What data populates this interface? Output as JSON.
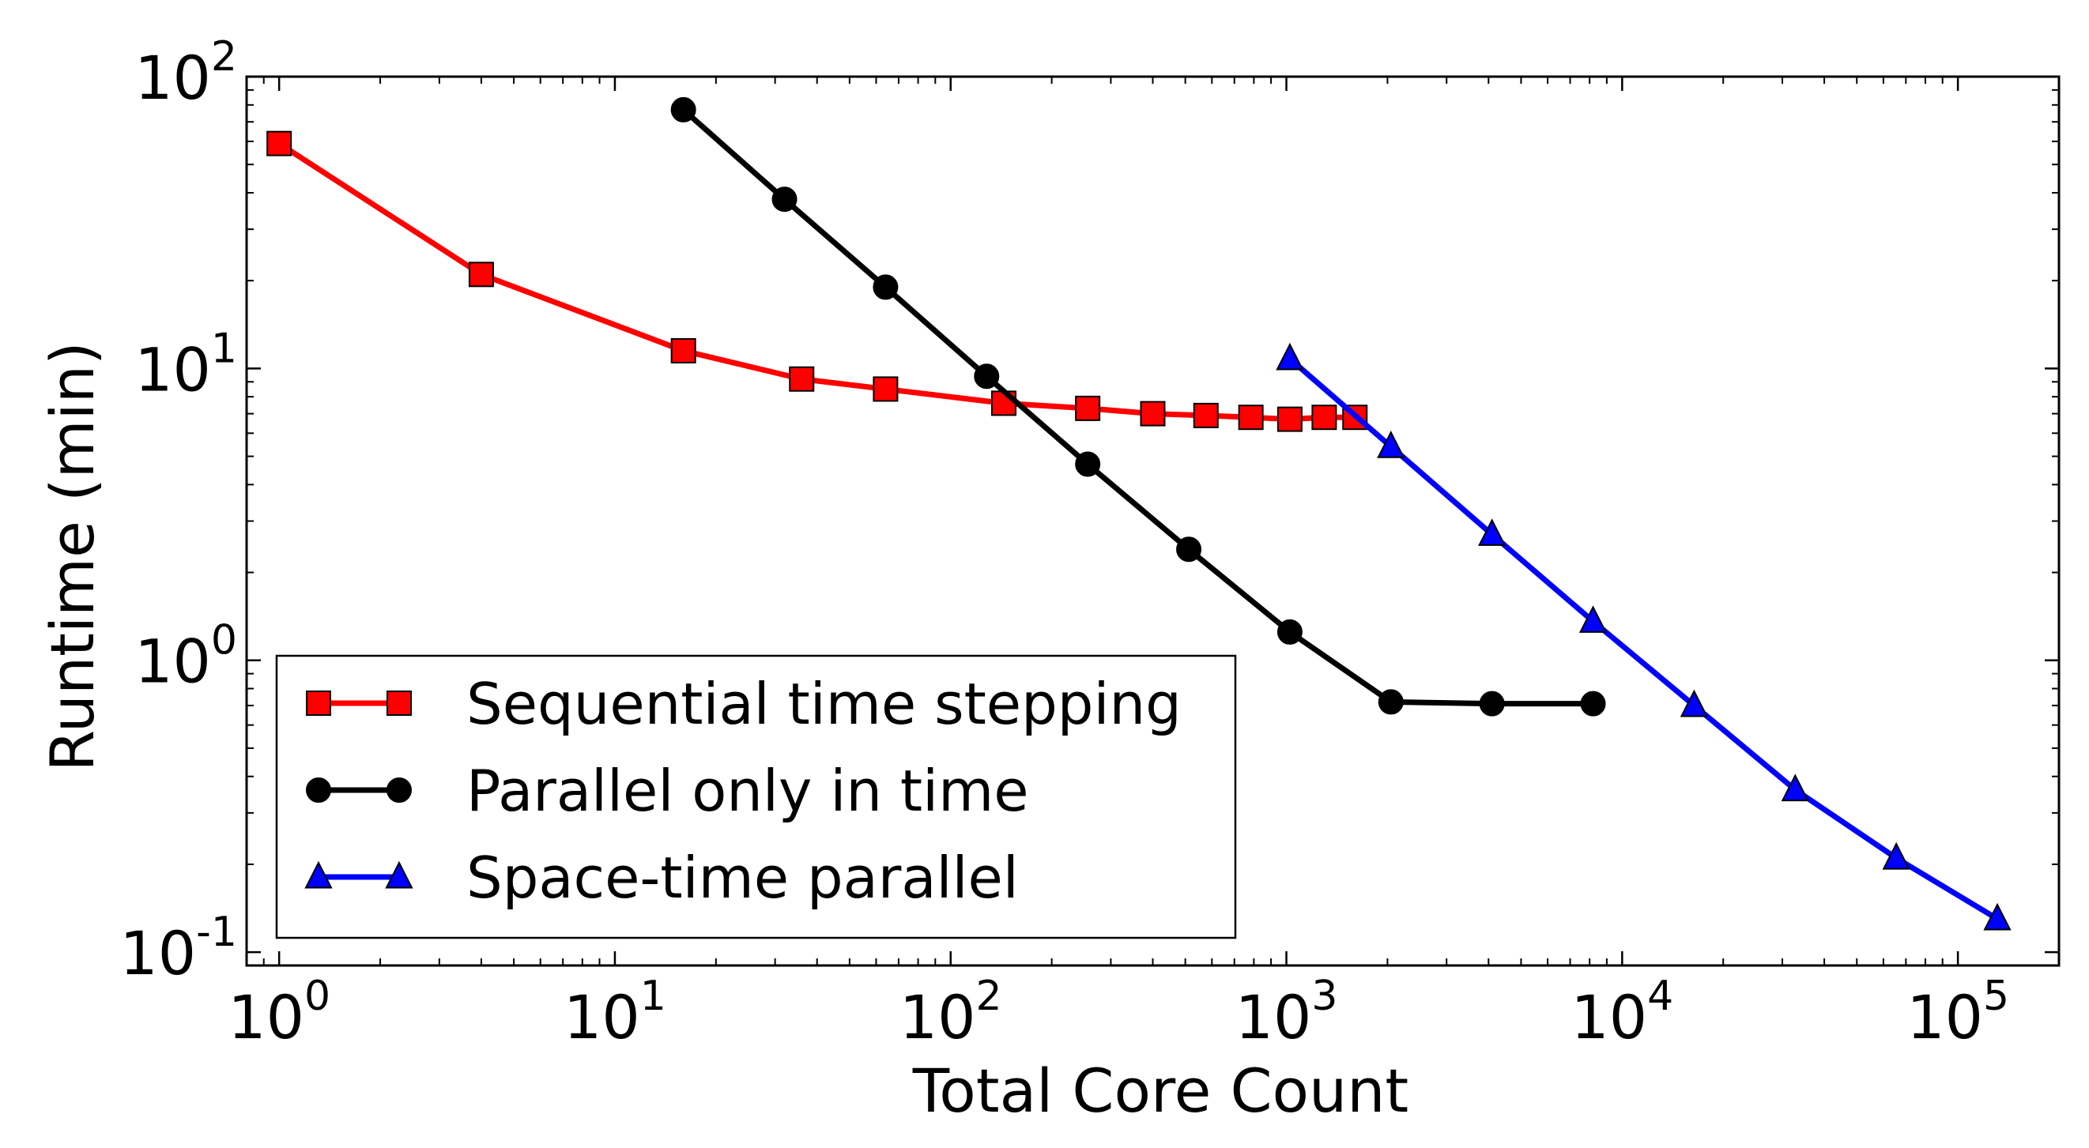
{
  "chart_data": {
    "type": "line",
    "title": "",
    "xlabel": "Total Core Count",
    "ylabel": "Runtime (min)",
    "xscale": "log",
    "yscale": "log",
    "xlim": [
      0.8,
      200000
    ],
    "ylim": [
      0.09,
      100
    ],
    "xticks": [
      {
        "value": 1,
        "base": "10",
        "exp": "0"
      },
      {
        "value": 10,
        "base": "10",
        "exp": "1"
      },
      {
        "value": 100,
        "base": "10",
        "exp": "2"
      },
      {
        "value": 1000,
        "base": "10",
        "exp": "3"
      },
      {
        "value": 10000,
        "base": "10",
        "exp": "4"
      },
      {
        "value": 100000,
        "base": "10",
        "exp": "5"
      }
    ],
    "yticks": [
      {
        "value": 0.1,
        "base": "10",
        "exp": "-1"
      },
      {
        "value": 1,
        "base": "10",
        "exp": "0"
      },
      {
        "value": 10,
        "base": "10",
        "exp": "1"
      },
      {
        "value": 100,
        "base": "10",
        "exp": "2"
      }
    ],
    "grid": false,
    "legend_position": "lower-left",
    "series": [
      {
        "name": "Sequential time stepping",
        "color": "#ff0000",
        "marker": "square",
        "x": [
          1,
          4,
          16,
          36,
          64,
          144,
          256,
          400,
          576,
          784,
          1024,
          1296,
          1600
        ],
        "y": [
          59,
          21,
          11.5,
          9.2,
          8.5,
          7.6,
          7.3,
          7.0,
          6.9,
          6.8,
          6.7,
          6.8,
          6.8
        ]
      },
      {
        "name": "Parallel only in time",
        "color": "#000000",
        "marker": "circle",
        "x": [
          16,
          32,
          64,
          128,
          256,
          512,
          1024,
          2048,
          4096,
          8192
        ],
        "y": [
          77,
          38,
          19,
          9.4,
          4.7,
          2.4,
          1.25,
          0.72,
          0.71,
          0.71
        ]
      },
      {
        "name": "Space-time parallel",
        "color": "#0000ff",
        "marker": "triangle",
        "x": [
          1024,
          2048,
          4096,
          8192,
          16384,
          32768,
          65536,
          131072
        ],
        "y": [
          10.8,
          5.4,
          2.7,
          1.36,
          0.7,
          0.36,
          0.21,
          0.13
        ]
      }
    ]
  }
}
